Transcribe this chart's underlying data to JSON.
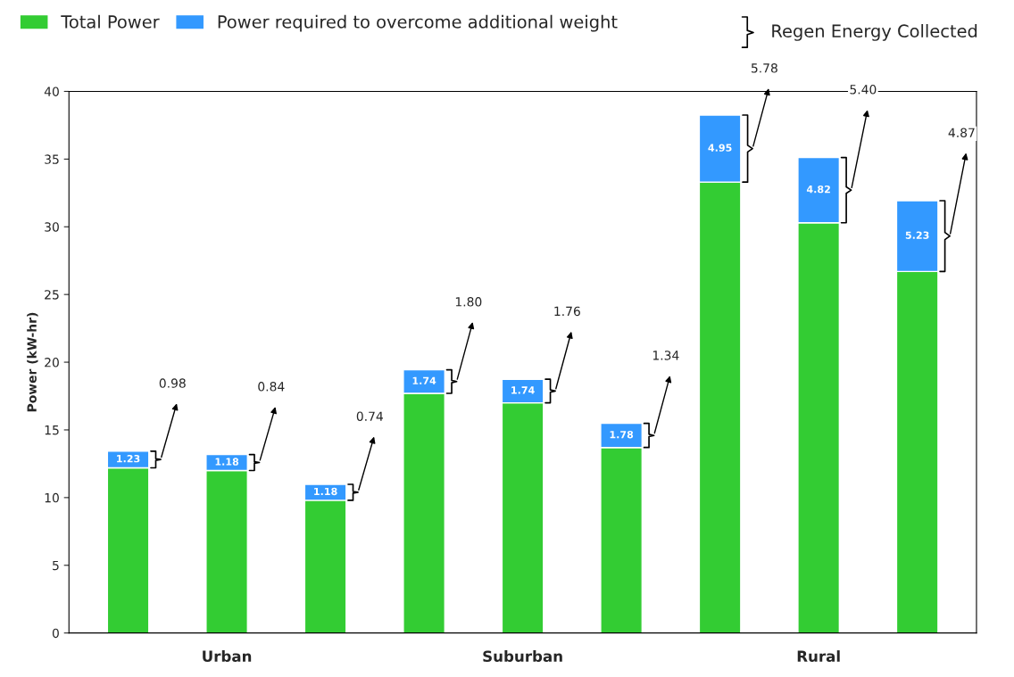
{
  "chart_data": {
    "type": "bar",
    "stacked": true,
    "ylabel": "Power (kW-hr)",
    "categories": [
      null,
      "Urban",
      null,
      null,
      "Suburban",
      null,
      null,
      "Rural",
      null
    ],
    "series": [
      {
        "name": "Total Power",
        "color": "#33cc33",
        "values": [
          12.2,
          12.0,
          9.8,
          17.7,
          17.0,
          13.7,
          33.3,
          30.3,
          26.7
        ]
      },
      {
        "name": "Power required to overcome additional weight",
        "color": "#3399ff",
        "values": [
          1.23,
          1.18,
          1.18,
          1.74,
          1.74,
          1.78,
          4.95,
          4.82,
          5.23
        ],
        "value_labels": [
          "1.23",
          "1.18",
          "1.18",
          "1.74",
          "1.74",
          "1.78",
          "4.95",
          "4.82",
          "5.23"
        ]
      }
    ],
    "ylim": [
      0,
      40
    ],
    "yticks": [
      0,
      5,
      10,
      15,
      20,
      25,
      30,
      35,
      40
    ],
    "grid": false,
    "legend": "top",
    "annotations": [
      "Regen Energy Collected",
      "0.98",
      "0.84",
      "0.74",
      "1.80",
      "1.76",
      "1.34",
      "5.78",
      "5.40",
      "4.87"
    ]
  }
}
